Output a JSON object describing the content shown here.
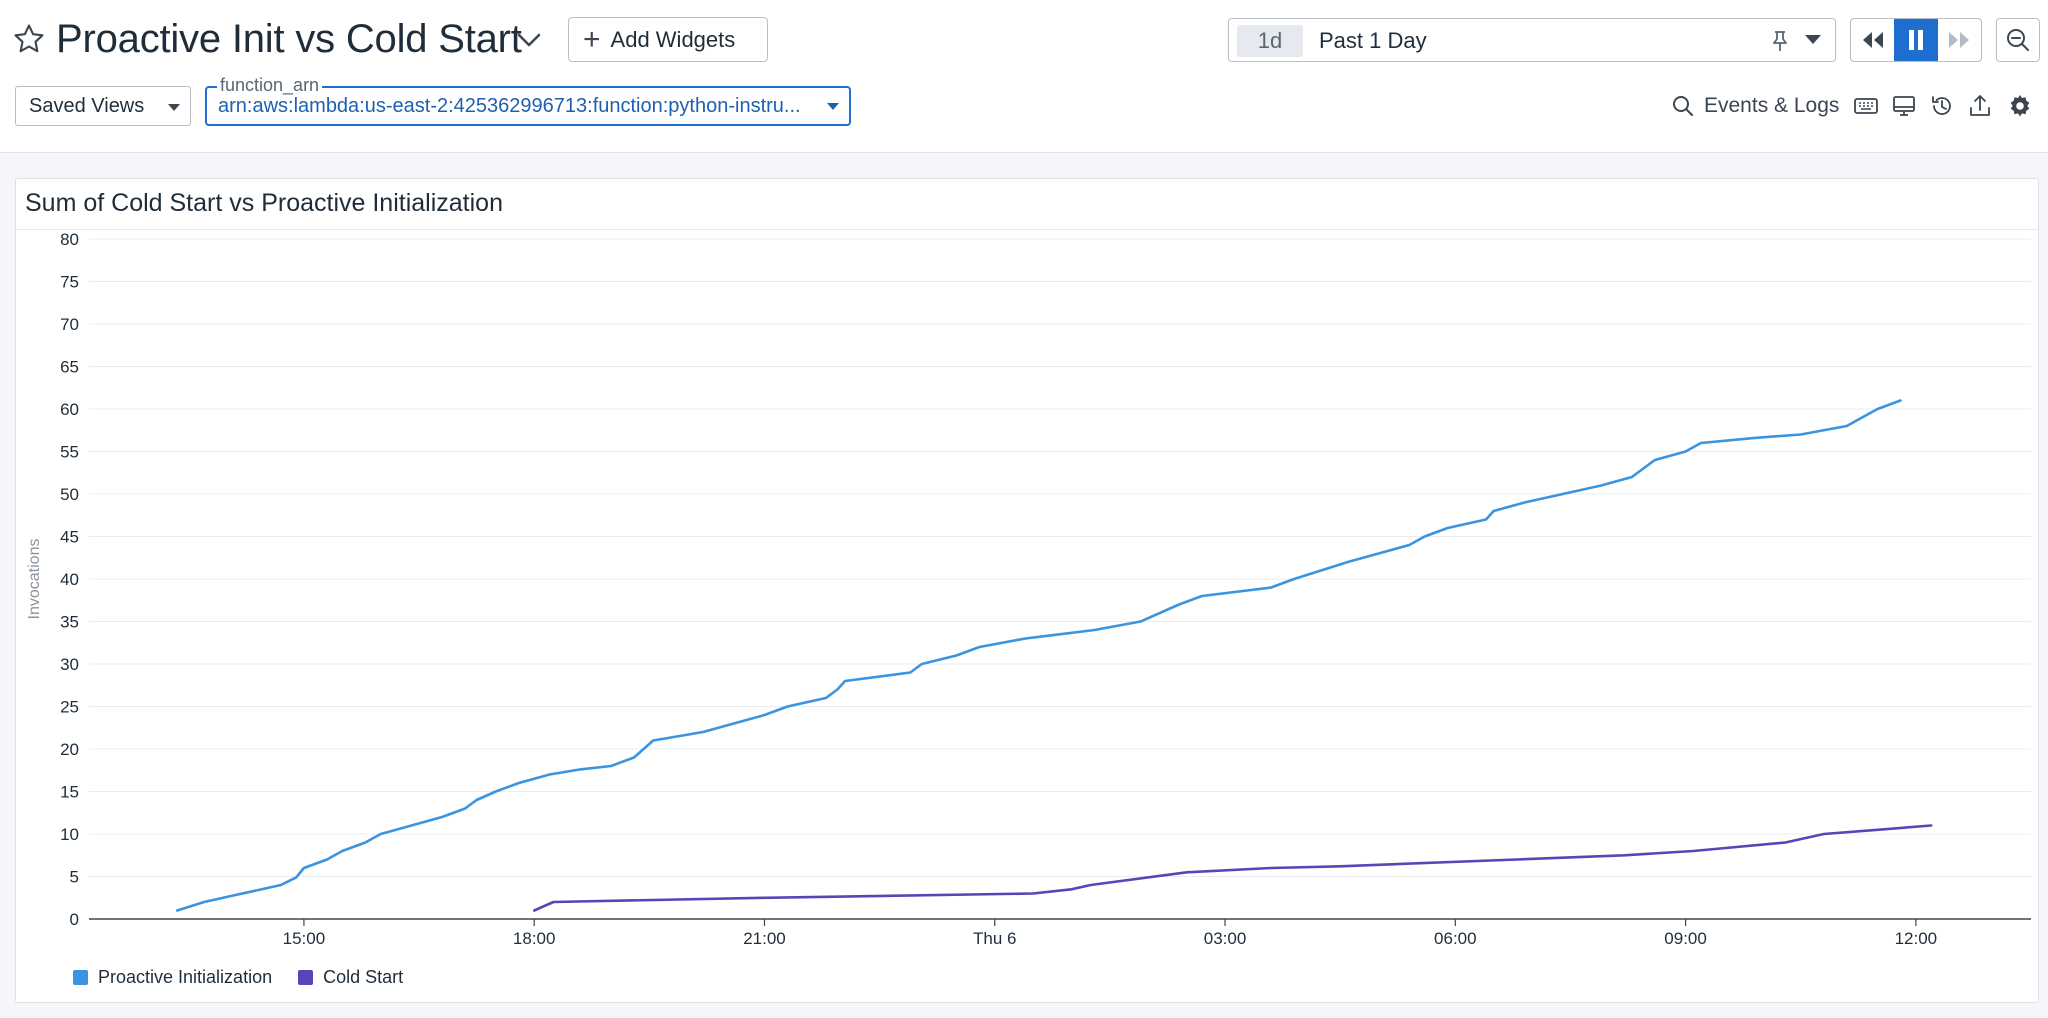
{
  "header": {
    "title": "Proactive Init vs Cold Start",
    "add_widgets_label": "Add Widgets",
    "time_chip": "1d",
    "time_label": "Past 1 Day"
  },
  "toolbar": {
    "saved_views_label": "Saved Views",
    "fn_var_name": "function_arn",
    "fn_var_value": "arn:aws:lambda:us-east-2:425362996713:function:python-instru...",
    "events_logs_label": "Events & Logs"
  },
  "widget": {
    "title": "Sum of Cold Start vs Proactive Initialization"
  },
  "colors": {
    "series_1": "#3a94df",
    "series_2": "#5b44b7",
    "accent": "#1f6fd1"
  },
  "chart_data": {
    "type": "line",
    "title": "Sum of Cold Start vs Proactive Initialization",
    "ylabel": "Invocations",
    "xlabel": "",
    "ylim": [
      0,
      80
    ],
    "yticks": [
      0,
      5,
      10,
      15,
      20,
      25,
      30,
      35,
      40,
      45,
      50,
      55,
      60,
      65,
      70,
      75,
      80
    ],
    "x_unit": "hours",
    "xticks": [
      {
        "x": 15,
        "label": "15:00"
      },
      {
        "x": 18,
        "label": "18:00"
      },
      {
        "x": 21,
        "label": "21:00"
      },
      {
        "x": 24,
        "label": "Thu 6"
      },
      {
        "x": 27,
        "label": "03:00"
      },
      {
        "x": 30,
        "label": "06:00"
      },
      {
        "x": 33,
        "label": "09:00"
      },
      {
        "x": 36,
        "label": "12:00"
      }
    ],
    "xlim": [
      12.2,
      37.5
    ],
    "grid": true,
    "legend_position": "bottom-left",
    "series": [
      {
        "name": "Proactive Initialization",
        "color": "#3a94df",
        "points": [
          [
            13.35,
            1
          ],
          [
            13.7,
            2
          ],
          [
            14.05,
            2.7
          ],
          [
            14.4,
            3.4
          ],
          [
            14.7,
            4
          ],
          [
            14.9,
            4.9
          ],
          [
            15.0,
            6
          ],
          [
            15.3,
            7
          ],
          [
            15.5,
            8
          ],
          [
            15.8,
            9
          ],
          [
            16.0,
            10
          ],
          [
            16.4,
            11
          ],
          [
            16.8,
            12
          ],
          [
            17.1,
            13
          ],
          [
            17.25,
            14
          ],
          [
            17.5,
            15
          ],
          [
            17.8,
            16
          ],
          [
            18.2,
            17
          ],
          [
            18.6,
            17.6
          ],
          [
            19.0,
            18
          ],
          [
            19.3,
            19
          ],
          [
            19.55,
            21
          ],
          [
            20.2,
            22
          ],
          [
            20.6,
            23
          ],
          [
            21.0,
            24
          ],
          [
            21.3,
            25
          ],
          [
            21.8,
            26
          ],
          [
            21.95,
            27
          ],
          [
            22.05,
            28
          ],
          [
            22.9,
            29
          ],
          [
            23.05,
            30
          ],
          [
            23.5,
            31
          ],
          [
            23.8,
            32
          ],
          [
            24.4,
            33
          ],
          [
            25.3,
            34
          ],
          [
            25.9,
            35
          ],
          [
            26.4,
            37
          ],
          [
            26.7,
            38
          ],
          [
            27.6,
            39
          ],
          [
            27.9,
            40
          ],
          [
            28.6,
            42
          ],
          [
            29.0,
            43
          ],
          [
            29.4,
            44
          ],
          [
            29.6,
            45
          ],
          [
            29.9,
            46
          ],
          [
            30.4,
            47
          ],
          [
            30.5,
            48
          ],
          [
            30.9,
            49
          ],
          [
            31.4,
            50
          ],
          [
            31.9,
            51
          ],
          [
            32.3,
            52
          ],
          [
            32.6,
            54
          ],
          [
            33.0,
            55
          ],
          [
            33.2,
            56
          ],
          [
            33.9,
            56.6
          ],
          [
            34.5,
            57
          ],
          [
            35.1,
            58
          ],
          [
            35.3,
            59
          ],
          [
            35.5,
            60
          ],
          [
            35.8,
            61
          ]
        ]
      },
      {
        "name": "Cold Start",
        "color": "#5b44b7",
        "points": [
          [
            18.0,
            1
          ],
          [
            18.25,
            2
          ],
          [
            21.0,
            2.5
          ],
          [
            24.5,
            3
          ],
          [
            25.0,
            3.5
          ],
          [
            25.25,
            4
          ],
          [
            26.5,
            5.5
          ],
          [
            27.6,
            6
          ],
          [
            28.5,
            6.2
          ],
          [
            30.8,
            7
          ],
          [
            32.2,
            7.5
          ],
          [
            33.1,
            8
          ],
          [
            34.3,
            9
          ],
          [
            34.8,
            10
          ],
          [
            35.5,
            10.5
          ],
          [
            36.2,
            11
          ]
        ]
      }
    ]
  }
}
